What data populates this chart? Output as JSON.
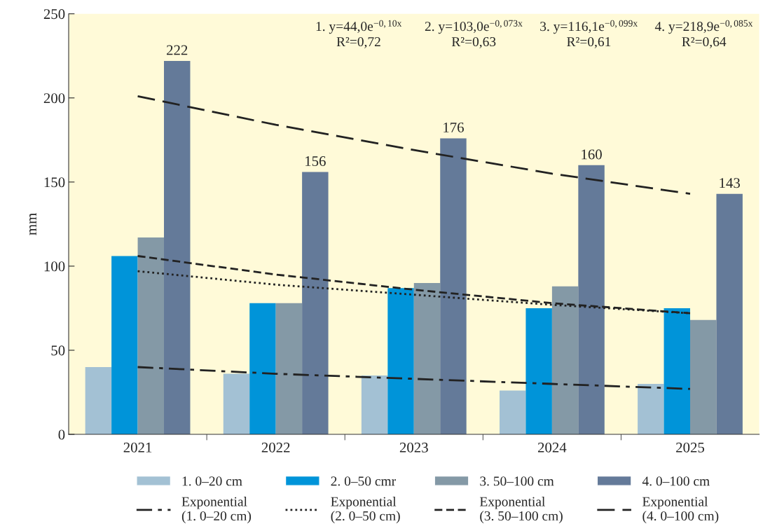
{
  "chart_data": {
    "type": "bar",
    "ylabel": "mm",
    "categories": [
      "2021",
      "2022",
      "2023",
      "2024",
      "2025"
    ],
    "series": [
      {
        "name": "1. 0–20 cm",
        "color": "#a3c1d4",
        "values": [
          40,
          36,
          35,
          26,
          30
        ]
      },
      {
        "name": "2. 0–50 cmr",
        "color": "#0094d9",
        "values": [
          106,
          78,
          87,
          75,
          75
        ]
      },
      {
        "name": "3. 50–100 cm",
        "color": "#8499a6",
        "values": [
          117,
          78,
          90,
          88,
          68
        ]
      },
      {
        "name": "4. 0–100 cm",
        "color": "#647a99",
        "values": [
          222,
          156,
          176,
          160,
          143
        ],
        "value_labels": [
          "222",
          "156",
          "176",
          "160",
          "143"
        ]
      },
      {
        "name": "Exponential\n(1. 0–20 cm)",
        "type": "line",
        "line_style": "dashdot",
        "color": "#222222",
        "values": [
          40,
          36,
          33,
          30,
          27
        ]
      },
      {
        "name": "Exponential\n(2. 0–50 cm)",
        "type": "line",
        "line_style": "dotted",
        "color": "#222222",
        "values": [
          97,
          89,
          83,
          77,
          72
        ]
      },
      {
        "name": "Exponential\n(3. 50–100 cm)",
        "type": "line",
        "line_style": "dashed",
        "color": "#222222",
        "values": [
          106,
          95,
          86,
          78,
          72
        ]
      },
      {
        "name": "Exponential\n(4. 0–100 cm)",
        "type": "line",
        "line_style": "longdash",
        "color": "#222222",
        "values": [
          201,
          184,
          169,
          155,
          143
        ]
      }
    ],
    "ylim": [
      0,
      250
    ],
    "yticks": [
      0,
      50,
      100,
      150,
      200,
      250
    ],
    "grid": false,
    "legend": "bottom",
    "marker": "none",
    "annotations": [
      "1. y=44,0e$^{−0,10x}$\nR²=0,72",
      "2. y=103,0e$^{−0,073x}$\nR²=0,63",
      "3. y=116,1e$^{−0,099x}$\nR²=0,61",
      "4. y=218,9e$^{−0,085x}$\nR²=0,64"
    ]
  }
}
